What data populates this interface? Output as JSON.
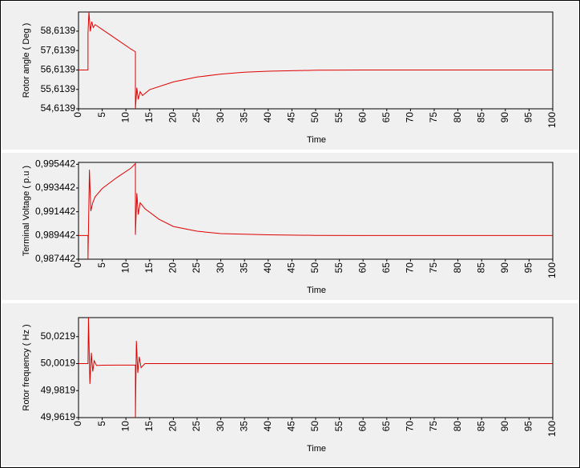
{
  "chart_data": [
    {
      "type": "line",
      "y_label": "Rotor angle ( Deg )",
      "x_label": "Time",
      "color": "#e00000",
      "x": [
        0,
        2,
        2,
        2.2,
        2.5,
        2.8,
        3.1,
        3.5,
        5,
        8,
        11,
        12,
        12,
        12.3,
        12.6,
        13,
        13.5,
        15,
        20,
        25,
        30,
        35,
        40,
        50,
        60,
        100
      ],
      "values": [
        56.6139,
        56.6139,
        58.5,
        59.6,
        58.6,
        59.1,
        58.8,
        58.95,
        58.7,
        58.2,
        57.7,
        57.55,
        54.62,
        55.7,
        55.1,
        55.5,
        55.3,
        55.6,
        56.0,
        56.25,
        56.4,
        56.5,
        56.55,
        56.6,
        56.6139,
        56.6139
      ],
      "xlim": [
        0,
        100
      ],
      "xticks": [
        0,
        5,
        10,
        15,
        20,
        25,
        30,
        35,
        40,
        45,
        50,
        55,
        60,
        65,
        70,
        75,
        80,
        85,
        90,
        95,
        100
      ],
      "ylim": [
        54.6139,
        59.6
      ],
      "yticks": [
        {
          "value": 54.6139,
          "label": "54,6139"
        },
        {
          "value": 55.6139,
          "label": "55,6139"
        },
        {
          "value": 56.6139,
          "label": "56,6139"
        },
        {
          "value": 57.6139,
          "label": "57,6139"
        },
        {
          "value": 58.6139,
          "label": "58,6139"
        }
      ]
    },
    {
      "type": "line",
      "y_label": "Terminal Voltage ( p.u )",
      "x_label": "Time",
      "color": "#e00000",
      "x": [
        0,
        2,
        2,
        2.3,
        2.6,
        3,
        3.5,
        5,
        8,
        11,
        12,
        12,
        12.3,
        12.6,
        13,
        14,
        17,
        20,
        25,
        30,
        40,
        50,
        60,
        100
      ],
      "values": [
        0.989442,
        0.989442,
        0.987442,
        0.99498,
        0.9915,
        0.9922,
        0.9927,
        0.9934,
        0.9943,
        0.9951,
        0.9955,
        0.9895,
        0.993,
        0.9912,
        0.9922,
        0.9917,
        0.9908,
        0.9902,
        0.9898,
        0.9896,
        0.9895,
        0.98945,
        0.989442,
        0.989442
      ],
      "xlim": [
        0,
        100
      ],
      "xticks": [
        0,
        5,
        10,
        15,
        20,
        25,
        30,
        35,
        40,
        45,
        50,
        55,
        60,
        65,
        70,
        75,
        80,
        85,
        90,
        95,
        100
      ],
      "ylim": [
        0.987442,
        0.9956
      ],
      "yticks": [
        {
          "value": 0.987442,
          "label": "0,987442"
        },
        {
          "value": 0.989442,
          "label": "0,989442"
        },
        {
          "value": 0.991442,
          "label": "0,991442"
        },
        {
          "value": 0.993442,
          "label": "0,993442"
        },
        {
          "value": 0.995442,
          "label": "0,995442"
        }
      ]
    },
    {
      "type": "line",
      "y_label": "Rotor frequency ( Hz )",
      "x_label": "Time",
      "color": "#e00000",
      "x": [
        0,
        2,
        2.1,
        2.4,
        2.7,
        3,
        3.3,
        3.8,
        5,
        12,
        12,
        12.2,
        12.5,
        12.8,
        13.2,
        14,
        100
      ],
      "values": [
        50.0019,
        50.0019,
        50.036,
        49.9869,
        50.01,
        49.996,
        50.004,
        50.0005,
        50.0007,
        50.0009,
        49.9619,
        50.0187,
        49.995,
        50.007,
        49.999,
        50.0019,
        50.0019
      ],
      "xlim": [
        0,
        100
      ],
      "xticks": [
        0,
        5,
        10,
        15,
        20,
        25,
        30,
        35,
        40,
        45,
        50,
        55,
        60,
        65,
        70,
        75,
        80,
        85,
        90,
        95,
        100
      ],
      "ylim": [
        49.9619,
        50.036
      ],
      "yticks": [
        {
          "value": 49.9619,
          "label": "49,9619"
        },
        {
          "value": 49.9819,
          "label": "49,9819"
        },
        {
          "value": 50.0019,
          "label": "50,0019"
        },
        {
          "value": 50.0219,
          "label": "50,0219"
        }
      ]
    }
  ]
}
